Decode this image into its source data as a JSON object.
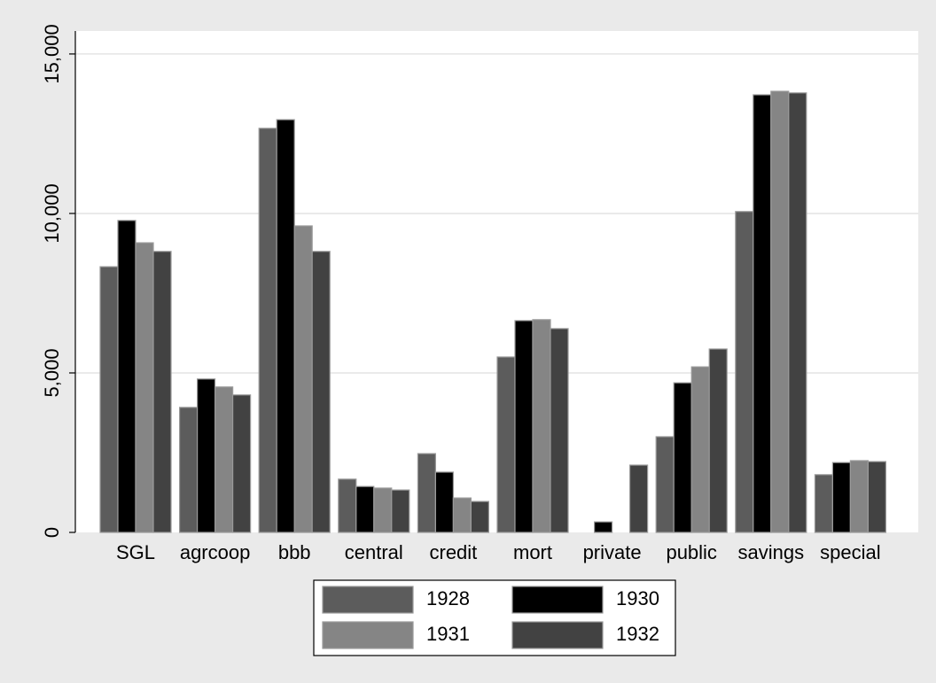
{
  "chart_data": {
    "type": "bar",
    "categories": [
      "SGL",
      "agrcoop",
      "bbb",
      "central",
      "credit",
      "mort",
      "private",
      "public",
      "savings",
      "special"
    ],
    "series": [
      {
        "name": "1928",
        "color": "#5c5c5c",
        "values": [
          8330,
          3920,
          12670,
          1670,
          2470,
          5500,
          null,
          3000,
          10060,
          1810
        ]
      },
      {
        "name": "1930",
        "color": "#000000",
        "values": [
          9780,
          4810,
          12940,
          1440,
          1890,
          6640,
          330,
          4690,
          13720,
          2190
        ]
      },
      {
        "name": "1931",
        "color": "#858585",
        "values": [
          9080,
          4560,
          9610,
          1390,
          1080,
          6670,
          null,
          5190,
          13830,
          2250
        ]
      },
      {
        "name": "1932",
        "color": "#424242",
        "values": [
          8810,
          4310,
          8810,
          1330,
          970,
          6390,
          2110,
          5750,
          13780,
          2220
        ]
      }
    ],
    "ylim": [
      0,
      15720
    ],
    "yticks": [
      0,
      {
        "value": 5000,
        "label": "5,000"
      },
      {
        "value": 10000,
        "label": "10,000"
      },
      {
        "value": 15000,
        "label": "15,000"
      }
    ],
    "grid": true
  }
}
